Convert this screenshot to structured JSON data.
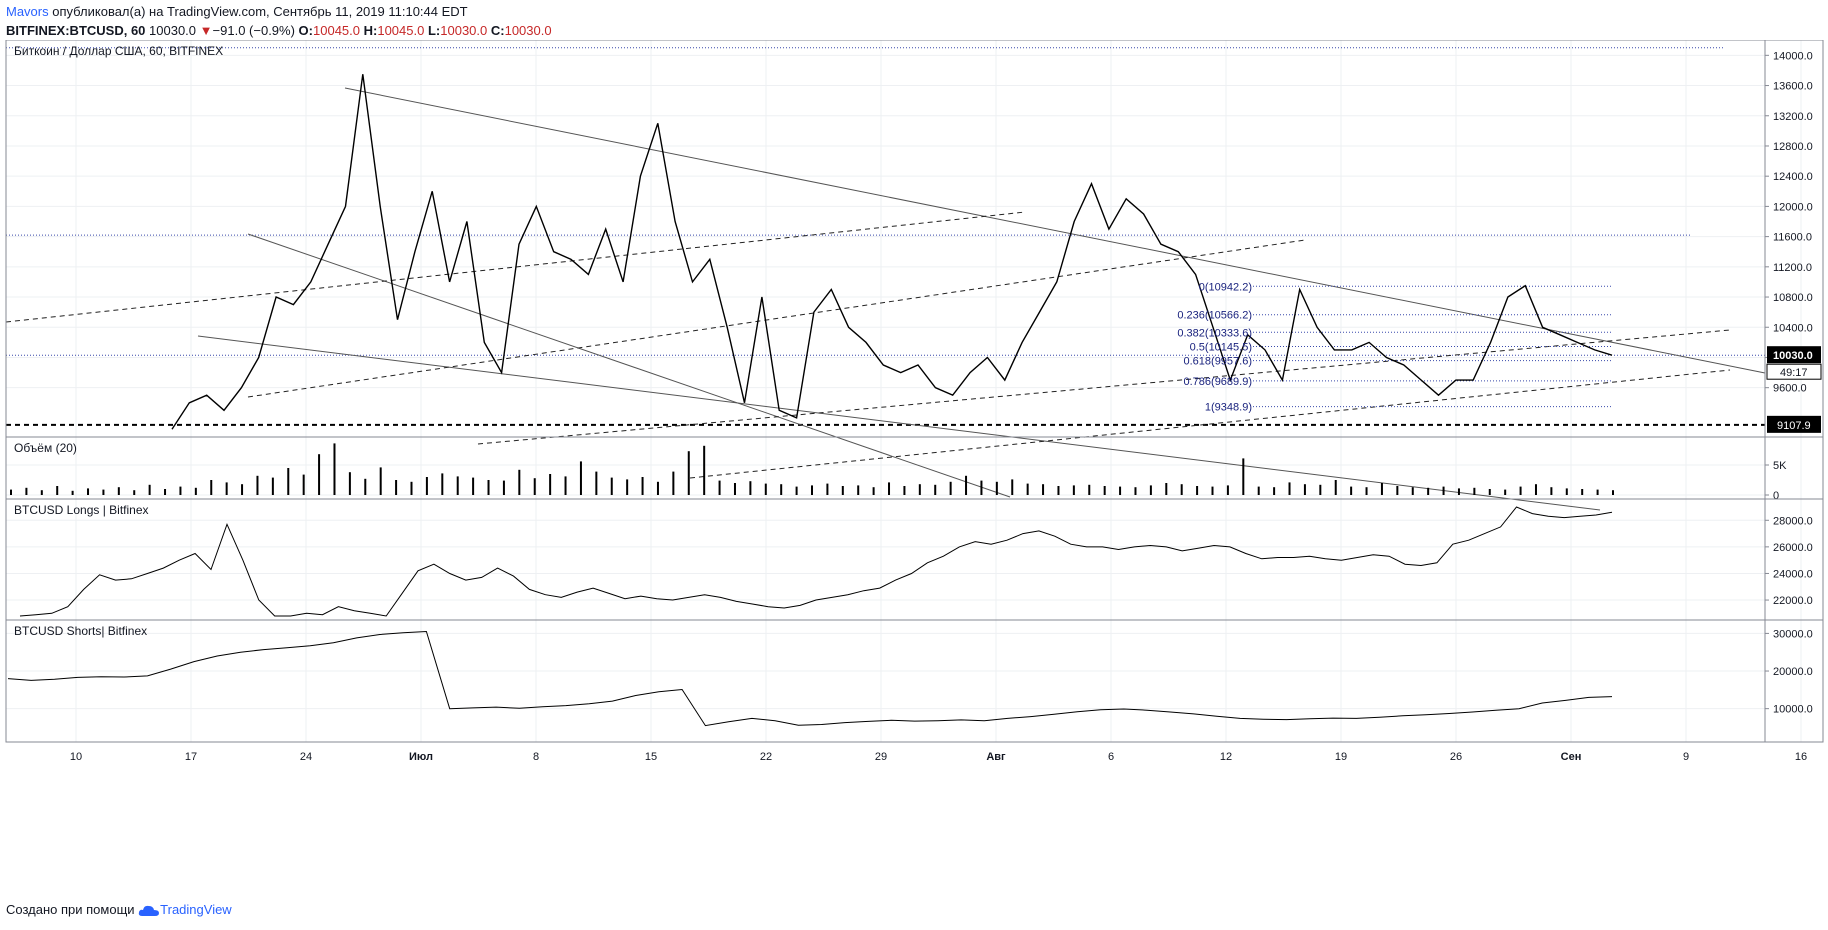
{
  "header": {
    "author": "Mavors",
    "published": "опубликовал(а) на TradingView.com, Сентябрь 11, 2019 11:10:44 EDT",
    "symbol": "BITFINEX:BTCUSD, 60",
    "last": "10030.0",
    "change": "−91.0 (−0.9%)",
    "o_label": "O:",
    "o": "10045.0",
    "h_label": "H:",
    "h": "10045.0",
    "l_label": "L:",
    "l": "10030.0",
    "c_label": "C:",
    "c": "10030.0"
  },
  "footer": {
    "created_with": "Создано при помощи",
    "brand": "TradingView"
  },
  "colors": {
    "candle": "#000000",
    "fib": "#1a237e",
    "grid": "#eef0f3",
    "border": "#868993",
    "down": "#c62828",
    "author": "#2962ff"
  },
  "chart_data": [
    {
      "type": "line",
      "title": "Биткоин / Доллар США, 60, BITFINEX",
      "y_ticks": [
        9600,
        10000,
        10400,
        10800,
        11200,
        11600,
        12000,
        12400,
        12800,
        13200,
        13600,
        14000
      ],
      "y_tick_labels": [
        "9600.0",
        "10000.0",
        "10400.0",
        "10800.0",
        "11200.0",
        "11600.0",
        "12000.0",
        "12400.0",
        "12800.0",
        "13200.0",
        "13600.0",
        "14000.0"
      ],
      "ylim": [
        9000,
        14150
      ],
      "x_ticks": [
        "10",
        "17",
        "24",
        "Июл",
        "8",
        "15",
        "22",
        "29",
        "Авг",
        "6",
        "12",
        "19",
        "26",
        "Сен",
        "9",
        "16"
      ],
      "last_price_label": "10030.0",
      "countdown_label": "49:17",
      "dashed_level_label": "9107.9",
      "dashed_level": 9107.9,
      "series": [
        {
          "values": [
            9050,
            9400,
            9500,
            9300,
            9600,
            10000,
            10800,
            10700,
            11000,
            11500,
            12000,
            13750,
            12000,
            10500,
            11400,
            12200,
            11000,
            11800,
            10200,
            9800,
            11500,
            12000,
            11400,
            11300,
            11100,
            11700,
            11000,
            12400,
            13100,
            11800,
            11000,
            11300,
            10400,
            9400,
            10800,
            9300,
            9200,
            10600,
            10900,
            10400,
            10200,
            9900,
            9800,
            9900,
            9600,
            9500,
            9800,
            10000,
            9700,
            10200,
            10600,
            11000,
            11800,
            12300,
            11700,
            12100,
            11900,
            11500,
            11400,
            11100,
            10400,
            9700,
            10300,
            10100,
            9700,
            10900,
            10400,
            10100,
            10100,
            10200,
            10000,
            9900,
            9700,
            9500,
            9700,
            9700,
            10200,
            10800,
            10950,
            10400,
            10300,
            10200,
            10100,
            10030
          ]
        }
      ],
      "fib_levels": [
        {
          "label": "0(10942.2)",
          "value": 10942.2
        },
        {
          "label": "0.236(10566.2)",
          "value": 10566.2
        },
        {
          "label": "0.382(10333.6)",
          "value": 10333.6
        },
        {
          "label": "0.5(10145.5)",
          "value": 10145.5
        },
        {
          "label": "0.618(9957.6)",
          "value": 9957.6
        },
        {
          "label": "0.786(9689.9)",
          "value": 9689.9
        },
        {
          "label": "1(9348.9)",
          "value": 9348.9
        }
      ],
      "horizontal_levels": [
        14100,
        11620,
        10030
      ]
    },
    {
      "type": "bar",
      "title": "Объём (20)",
      "y_tick_labels": [
        "5K",
        "0"
      ],
      "y_ticks": [
        5000,
        0
      ],
      "ylim": [
        0,
        9000
      ],
      "values": [
        900,
        1200,
        800,
        1500,
        700,
        1100,
        900,
        1300,
        800,
        1700,
        1000,
        1400,
        1200,
        2500,
        2100,
        1800,
        3200,
        2900,
        4500,
        3400,
        6800,
        8600,
        3800,
        2700,
        4600,
        2500,
        2200,
        3000,
        3600,
        3100,
        2900,
        2500,
        2400,
        4200,
        2800,
        3500,
        3100,
        5600,
        3900,
        2900,
        2600,
        3000,
        2200,
        3900,
        7300,
        8200,
        2400,
        2000,
        2300,
        1900,
        1800,
        1400,
        1600,
        1900,
        1500,
        1600,
        1300,
        2100,
        1500,
        1800,
        1700,
        2200,
        3200,
        2400,
        2200,
        2600,
        1900,
        1800,
        1500,
        1600,
        1700,
        1500,
        1400,
        1300,
        1600,
        2000,
        1800,
        1500,
        1400,
        1600,
        6100,
        1400,
        1300,
        2100,
        1800,
        1700,
        2500,
        1400,
        1300,
        2000,
        1500,
        1300,
        1200,
        1400,
        1100,
        1200,
        1000,
        900,
        1400,
        1800,
        1300,
        1100,
        1000,
        900,
        800
      ]
    },
    {
      "type": "line",
      "title": "BTCUSD Longs | Bitfinex",
      "y_tick_labels": [
        "22000.0",
        "24000.0",
        "26000.0",
        "28000.0"
      ],
      "y_ticks": [
        22000,
        24000,
        26000,
        28000
      ],
      "ylim": [
        20800,
        29300
      ],
      "values": [
        20800,
        20900,
        21000,
        21500,
        22800,
        23900,
        23500,
        23600,
        24000,
        24400,
        25000,
        25500,
        24300,
        27700,
        25000,
        22000,
        20800,
        20800,
        21000,
        20900,
        21500,
        21200,
        21000,
        20800,
        22500,
        24200,
        24700,
        24000,
        23500,
        23700,
        24400,
        23800,
        22800,
        22400,
        22200,
        22600,
        22900,
        22500,
        22100,
        22300,
        22100,
        22000,
        22200,
        22400,
        22200,
        21900,
        21700,
        21500,
        21400,
        21600,
        22000,
        22200,
        22400,
        22700,
        22900,
        23500,
        24000,
        24800,
        25300,
        26000,
        26400,
        26200,
        26500,
        27000,
        27200,
        26800,
        26200,
        26000,
        26000,
        25800,
        26000,
        26100,
        26000,
        25700,
        25900,
        26100,
        26000,
        25500,
        25100,
        25200,
        25200,
        25300,
        25100,
        25000,
        25200,
        25400,
        25300,
        24700,
        24600,
        24800,
        26200,
        26500,
        27000,
        27500,
        29000,
        28500,
        28300,
        28200,
        28300,
        28400,
        28600
      ]
    },
    {
      "type": "line",
      "title": "BTCUSD Shorts| Bitfinex",
      "y_tick_labels": [
        "10000.0",
        "20000.0",
        "30000.0"
      ],
      "y_ticks": [
        10000,
        20000,
        30000
      ],
      "ylim": [
        2200,
        32500
      ],
      "values": [
        18000,
        17500,
        17800,
        18300,
        18500,
        18400,
        18700,
        20500,
        22500,
        24000,
        25000,
        25700,
        26200,
        26700,
        27500,
        28800,
        29700,
        30200,
        30500,
        10000,
        10200,
        10400,
        10100,
        10500,
        10800,
        11300,
        12000,
        13500,
        14500,
        15100,
        5500,
        6500,
        7400,
        6800,
        5600,
        5800,
        6300,
        6600,
        6900,
        6700,
        6800,
        7000,
        6800,
        7400,
        7900,
        8500,
        9200,
        9700,
        9900,
        9600,
        9100,
        8600,
        8000,
        7400,
        7200,
        7100,
        7300,
        7500,
        7400,
        7700,
        8100,
        8400,
        8700,
        9100,
        9600,
        10000,
        11500,
        12200,
        13000,
        13200
      ]
    }
  ]
}
